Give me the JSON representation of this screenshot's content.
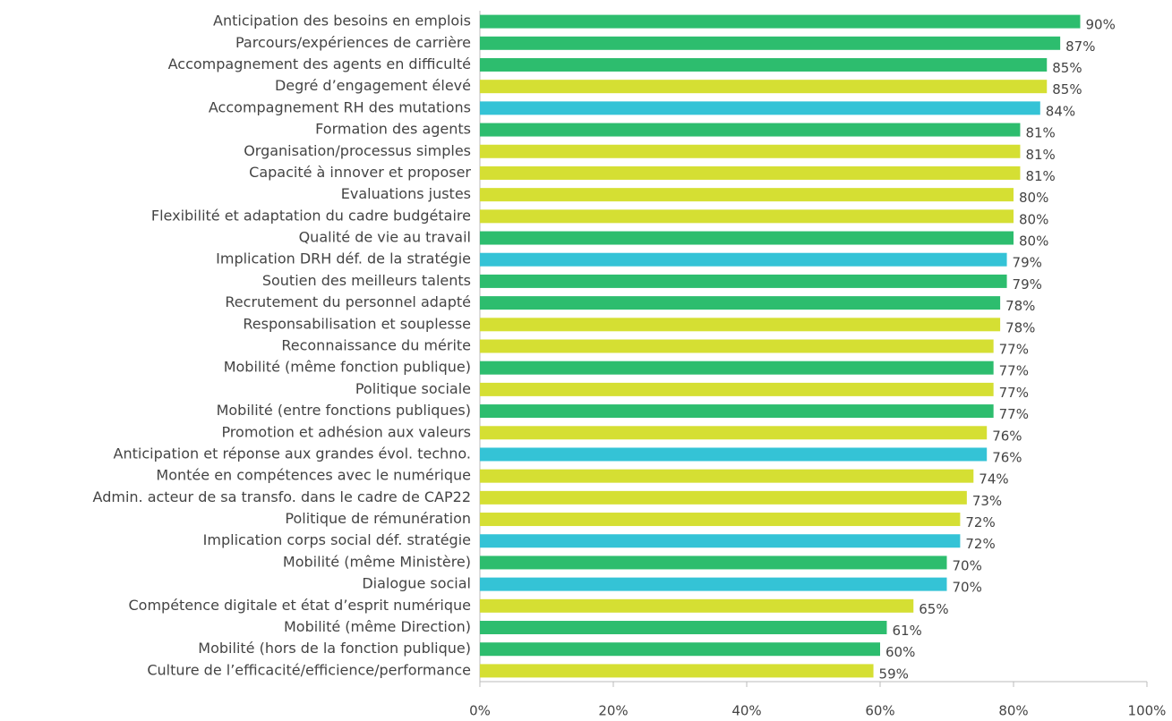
{
  "chart_data": {
    "type": "barh",
    "categories": [
      "Anticipation des besoins en emplois",
      "Parcours/expériences de carrière",
      "Accompagnement des agents en difficulté",
      "Degré d’engagement élevé",
      "Accompagnement RH des mutations",
      "Formation des agents",
      "Organisation/processus simples",
      "Capacité à innover et proposer",
      "Evaluations justes",
      "Flexibilité et adaptation du cadre budgétaire",
      "Qualité de vie au travail",
      "Implication DRH déf. de la stratégie",
      "Soutien des meilleurs talents",
      "Recrutement du personnel adapté",
      "Responsabilisation et souplesse",
      "Reconnaissance du mérite",
      "Mobilité (même fonction publique)",
      "Politique sociale",
      "Mobilité (entre fonctions publiques)",
      "Promotion et adhésion aux valeurs",
      "Anticipation et réponse aux grandes évol. techno.",
      "Montée en compétences avec le numérique",
      "Admin. acteur de sa transfo. dans le cadre de CAP22",
      "Politique de rémunération",
      "Implication corps social déf. stratégie",
      "Mobilité (même Ministère)",
      "Dialogue social",
      "Compétence digitale et état d’esprit numérique",
      "Mobilité (même Direction)",
      "Mobilité (hors de la fonction publique)",
      "Culture de l’efficacité/efficience/performance"
    ],
    "values": [
      90,
      87,
      85,
      85,
      84,
      81,
      81,
      81,
      80,
      80,
      80,
      79,
      79,
      78,
      78,
      77,
      77,
      77,
      77,
      76,
      76,
      74,
      73,
      72,
      72,
      70,
      70,
      65,
      61,
      60,
      59
    ],
    "value_labels": [
      "90%",
      "87%",
      "85%",
      "85%",
      "84%",
      "81%",
      "81%",
      "81%",
      "80%",
      "80%",
      "80%",
      "79%",
      "79%",
      "78%",
      "78%",
      "77%",
      "77%",
      "77%",
      "77%",
      "76%",
      "76%",
      "74%",
      "73%",
      "72%",
      "72%",
      "70%",
      "70%",
      "65%",
      "61%",
      "60%",
      "59%"
    ],
    "colors": [
      "#2dbd6e",
      "#2dbd6e",
      "#2dbd6e",
      "#d5df33",
      "#34c3d6",
      "#2dbd6e",
      "#d5df33",
      "#d5df33",
      "#d5df33",
      "#d5df33",
      "#2dbd6e",
      "#34c3d6",
      "#2dbd6e",
      "#2dbd6e",
      "#d5df33",
      "#d5df33",
      "#2dbd6e",
      "#d5df33",
      "#2dbd6e",
      "#d5df33",
      "#34c3d6",
      "#d5df33",
      "#d5df33",
      "#d5df33",
      "#34c3d6",
      "#2dbd6e",
      "#34c3d6",
      "#d5df33",
      "#2dbd6e",
      "#2dbd6e",
      "#d5df33"
    ],
    "xlim": [
      0,
      100
    ],
    "xticks": [
      {
        "value": 0,
        "label": "0%"
      },
      {
        "value": 20,
        "label": "20%"
      },
      {
        "value": 40,
        "label": "40%"
      },
      {
        "value": 60,
        "label": "60%"
      },
      {
        "value": 80,
        "label": "80%"
      },
      {
        "value": 100,
        "label": "100%"
      }
    ]
  }
}
